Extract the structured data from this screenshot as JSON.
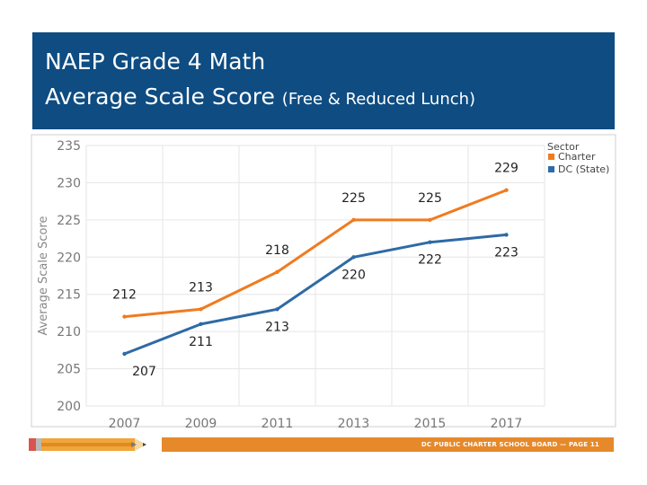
{
  "slide": {
    "title_line1": "NAEP Grade 4 Math",
    "title_line2_main": "Average Scale Score",
    "title_line2_sub": "(Free & Reduced Lunch)"
  },
  "footer": {
    "text": "DC PUBLIC CHARTER SCHOOL BOARD — PAGE 11",
    "bar_color": "#e6892b"
  },
  "chart_data": {
    "type": "line",
    "title": "",
    "xlabel": "",
    "ylabel": "Average Scale Score",
    "x": [
      "2007",
      "2009",
      "2011",
      "2013",
      "2015",
      "2017"
    ],
    "ylim": [
      200,
      235
    ],
    "yticks": [
      200,
      205,
      210,
      215,
      220,
      225,
      230,
      235
    ],
    "grid": true,
    "legend": {
      "title": "Sector",
      "placement": "top-right"
    },
    "series": [
      {
        "name": "Charter",
        "color": "#f07b1f",
        "values": [
          212,
          213,
          218,
          225,
          225,
          229
        ],
        "label_position": "above"
      },
      {
        "name": "DC (State)",
        "color": "#2e6aa5",
        "values": [
          207,
          211,
          213,
          220,
          222,
          223
        ],
        "label_position": "below"
      }
    ]
  }
}
